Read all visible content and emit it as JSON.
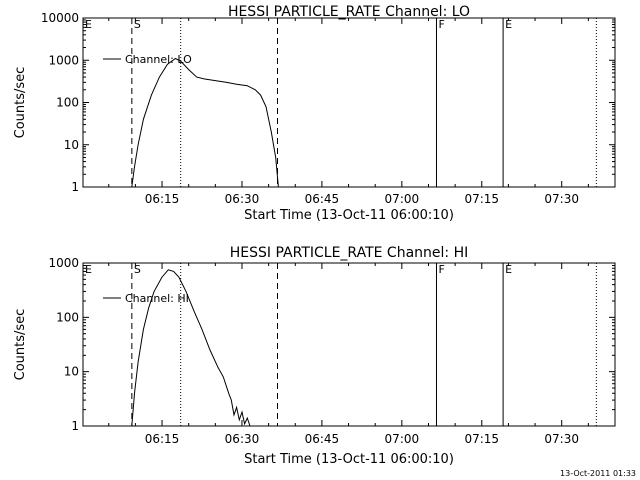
{
  "chart_data": [
    {
      "type": "line",
      "title": "HESSI PARTICLE_RATE Channel: LO",
      "xlabel": "Start Time (13-Oct-11 06:00:10)",
      "ylabel": "Counts/sec",
      "y_scale": "log",
      "ylim": [
        1,
        10000
      ],
      "xlim": [
        "06:00:10",
        "07:40:00"
      ],
      "x_ticks": [
        "06:15",
        "06:30",
        "06:45",
        "07:00",
        "07:15",
        "07:30"
      ],
      "y_ticks": [
        "1",
        "10",
        "100",
        "1000",
        "10000"
      ],
      "legend": {
        "entry": "Channel: LO",
        "placement": "top-left"
      },
      "markers": [
        {
          "label": "E",
          "x": "06:00:10",
          "style": "solid"
        },
        {
          "label": "S",
          "x": "06:09:20",
          "style": "dashed"
        },
        {
          "label": "",
          "x": "06:18:30",
          "style": "dotted"
        },
        {
          "label": "",
          "x": "06:36:40",
          "style": "dashed"
        },
        {
          "label": "F",
          "x": "07:06:30",
          "style": "solid"
        },
        {
          "label": "E",
          "x": "07:19:00",
          "style": "solid"
        },
        {
          "label": "",
          "x": "07:36:30",
          "style": "dotted"
        }
      ],
      "series": [
        {
          "name": "Channel: LO",
          "points": [
            [
              "06:09:20",
              1
            ],
            [
              "06:09:50",
              3
            ],
            [
              "06:10:30",
              10
            ],
            [
              "06:11:30",
              40
            ],
            [
              "06:13:00",
              150
            ],
            [
              "06:14:30",
              400
            ],
            [
              "06:16:00",
              800
            ],
            [
              "06:17:30",
              1100
            ],
            [
              "06:18:30",
              950
            ],
            [
              "06:20:00",
              600
            ],
            [
              "06:21:30",
              400
            ],
            [
              "06:23:00",
              360
            ],
            [
              "06:25:00",
              330
            ],
            [
              "06:27:00",
              300
            ],
            [
              "06:29:00",
              270
            ],
            [
              "06:31:00",
              250
            ],
            [
              "06:32:30",
              200
            ],
            [
              "06:33:30",
              150
            ],
            [
              "06:34:30",
              80
            ],
            [
              "06:35:30",
              20
            ],
            [
              "06:36:20",
              5
            ],
            [
              "06:36:50",
              1
            ]
          ]
        }
      ]
    },
    {
      "type": "line",
      "title": "HESSI PARTICLE_RATE Channel: HI",
      "xlabel": "Start Time (13-Oct-11 06:00:10)",
      "ylabel": "Counts/sec",
      "y_scale": "log",
      "ylim": [
        1,
        1000
      ],
      "xlim": [
        "06:00:10",
        "07:40:00"
      ],
      "x_ticks": [
        "06:15",
        "06:30",
        "06:45",
        "07:00",
        "07:15",
        "07:30"
      ],
      "y_ticks": [
        "1",
        "10",
        "100",
        "1000"
      ],
      "legend": {
        "entry": "Channel: HI",
        "placement": "top-left"
      },
      "markers": [
        {
          "label": "E",
          "x": "06:00:10",
          "style": "solid"
        },
        {
          "label": "S",
          "x": "06:09:20",
          "style": "dashed"
        },
        {
          "label": "",
          "x": "06:18:30",
          "style": "dotted"
        },
        {
          "label": "",
          "x": "06:36:40",
          "style": "dashed"
        },
        {
          "label": "F",
          "x": "07:06:30",
          "style": "solid"
        },
        {
          "label": "E",
          "x": "07:19:00",
          "style": "solid"
        },
        {
          "label": "",
          "x": "07:36:30",
          "style": "dotted"
        }
      ],
      "series": [
        {
          "name": "Channel: HI",
          "points": [
            [
              "06:09:20",
              1
            ],
            [
              "06:09:50",
              4
            ],
            [
              "06:10:30",
              15
            ],
            [
              "06:11:30",
              60
            ],
            [
              "06:12:30",
              150
            ],
            [
              "06:13:30",
              300
            ],
            [
              "06:15:00",
              550
            ],
            [
              "06:16:10",
              750
            ],
            [
              "06:17:10",
              700
            ],
            [
              "06:18:10",
              550
            ],
            [
              "06:19:30",
              300
            ],
            [
              "06:21:00",
              130
            ],
            [
              "06:22:30",
              60
            ],
            [
              "06:24:00",
              25
            ],
            [
              "06:25:30",
              12
            ],
            [
              "06:26:30",
              8
            ],
            [
              "06:27:30",
              4
            ],
            [
              "06:28:00",
              3
            ],
            [
              "06:28:30",
              1.6
            ],
            [
              "06:29:00",
              2.2
            ],
            [
              "06:29:30",
              1.3
            ],
            [
              "06:30:00",
              1.8
            ],
            [
              "06:30:30",
              1.1
            ],
            [
              "06:31:00",
              1.4
            ],
            [
              "06:31:30",
              1
            ]
          ]
        }
      ]
    }
  ],
  "footer": {
    "timestamp": "13-Oct-2011 01:33"
  },
  "colors": {
    "line": "#000000",
    "background": "#ffffff"
  }
}
